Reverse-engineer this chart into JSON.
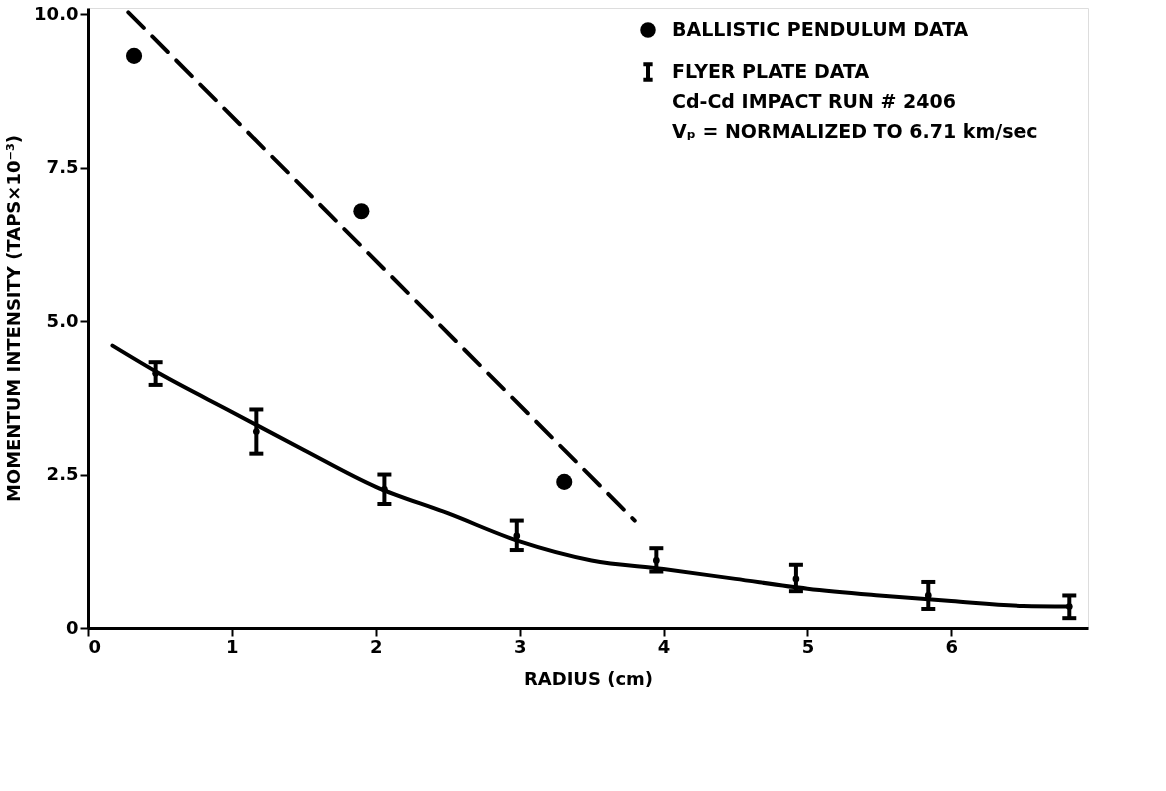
{
  "chart_data": {
    "type": "scatter",
    "xlabel": "RADIUS (cm)",
    "ylabel": "MOMENTUM INTENSITY (TAPS×10⁻³)",
    "xlim": [
      0,
      6.95
    ],
    "xticks": [
      0,
      1,
      2,
      3,
      4,
      5,
      6
    ],
    "ylim": [
      0,
      10.1
    ],
    "yticks": [
      0,
      2.5,
      {
        "value": 5,
        "label": "5.0"
      },
      {
        "value": 7.5,
        "label": "7.5"
      },
      {
        "value": 10,
        "label": "10.0"
      }
    ],
    "grid": false,
    "legend": "top right",
    "series": [
      {
        "type": "line",
        "color": "#000000",
        "line_style": "dashed",
        "marker": "none",
        "x": [
          0.28,
          3.8
        ],
        "values": [
          10.03,
          1.75
        ]
      },
      {
        "type": "line",
        "color": "#000000",
        "line_style": "solid",
        "marker": "none",
        "x": [
          0.17,
          0.5,
          1.0,
          1.5,
          2.0,
          2.5,
          3.0,
          3.5,
          4.0,
          4.5,
          5.0,
          5.5,
          6.0,
          6.5,
          6.82
        ],
        "values": [
          4.6,
          4.14,
          3.52,
          2.9,
          2.3,
          1.87,
          1.41,
          1.1,
          0.96,
          0.8,
          0.64,
          0.53,
          0.44,
          0.36,
          0.35
        ]
      },
      {
        "name": "BALLISTIC PENDULUM DATA",
        "color": "#000000",
        "marker": "circle",
        "x": [
          0.32,
          1.9,
          3.31
        ],
        "values": [
          9.32,
          6.79,
          2.38
        ]
      },
      {
        "name": "FLYER PLATE DATA",
        "color": "#000000",
        "marker": "none",
        "x": [
          0.47,
          1.17,
          2.06,
          2.98,
          3.95,
          4.92,
          5.84,
          6.82
        ],
        "values": [
          4.15,
          3.2,
          2.26,
          1.5,
          1.1,
          0.8,
          0.53,
          0.35
        ],
        "errors": [
          [
            3.96,
            4.33
          ],
          [
            2.84,
            3.56
          ],
          [
            2.02,
            2.5
          ],
          [
            1.27,
            1.75
          ],
          [
            0.92,
            1.3
          ],
          [
            0.6,
            1.03
          ],
          [
            0.31,
            0.75
          ],
          [
            0.16,
            0.53
          ]
        ]
      }
    ],
    "annotations": [
      "Cd-Cd IMPACT RUN # 2406",
      "Vₚ = NORMALIZED TO 6.71 km/sec"
    ]
  }
}
